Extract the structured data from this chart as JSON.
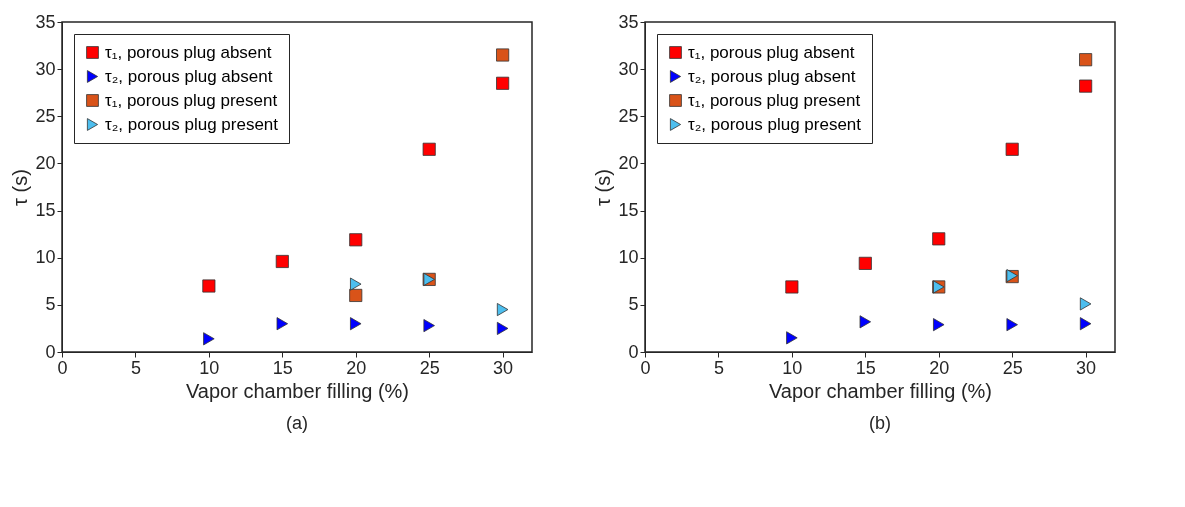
{
  "chart_data": [
    {
      "type": "scatter",
      "xlabel": "Vapor chamber filling (%)",
      "ylabel": "τ (s)",
      "annotations": [
        "(a)"
      ],
      "xlim": [
        0,
        32
      ],
      "ylim": [
        0,
        35
      ],
      "xticks": [
        0,
        5,
        10,
        15,
        20,
        25,
        30
      ],
      "yticks": [
        0,
        5,
        10,
        15,
        20,
        25,
        30,
        35
      ],
      "grid": false,
      "legend": "top left",
      "series": [
        {
          "name": "τ₁, porous plug absent",
          "color": "#ff0000",
          "marker": "square",
          "x": [
            10,
            15,
            20,
            25,
            30
          ],
          "values": [
            7.0,
            9.6,
            11.9,
            21.5,
            28.5
          ]
        },
        {
          "name": "τ₂, porous plug absent",
          "color": "#0000ff",
          "marker": "triangle",
          "x": [
            10,
            15,
            20,
            25,
            30
          ],
          "values": [
            1.4,
            3.0,
            3.0,
            2.8,
            2.5
          ]
        },
        {
          "name": "τ₁, porous plug present",
          "color": "#d95319",
          "marker": "square",
          "x": [
            20,
            25,
            30
          ],
          "values": [
            6.0,
            7.7,
            31.5
          ]
        },
        {
          "name": "τ₂, porous plug present",
          "color": "#4dbeee",
          "marker": "triangle",
          "x": [
            20,
            25,
            30
          ],
          "values": [
            7.2,
            7.7,
            4.5
          ]
        }
      ]
    },
    {
      "type": "scatter",
      "xlabel": "Vapor chamber filling (%)",
      "ylabel": "τ (s)",
      "annotations": [
        "(b)"
      ],
      "xlim": [
        0,
        32
      ],
      "ylim": [
        0,
        35
      ],
      "xticks": [
        0,
        5,
        10,
        15,
        20,
        25,
        30
      ],
      "yticks": [
        0,
        5,
        10,
        15,
        20,
        25,
        30,
        35
      ],
      "grid": false,
      "legend": "top left",
      "series": [
        {
          "name": "τ₁, porous plug absent",
          "color": "#ff0000",
          "marker": "square",
          "x": [
            10,
            15,
            20,
            25,
            30
          ],
          "values": [
            6.9,
            9.4,
            12.0,
            21.5,
            28.2
          ]
        },
        {
          "name": "τ₂, porous plug absent",
          "color": "#0000ff",
          "marker": "triangle",
          "x": [
            10,
            15,
            20,
            25,
            30
          ],
          "values": [
            1.5,
            3.2,
            2.9,
            2.9,
            3.0
          ]
        },
        {
          "name": "τ₁, porous plug present",
          "color": "#d95319",
          "marker": "square",
          "x": [
            20,
            25,
            30
          ],
          "values": [
            6.9,
            8.0,
            31.0
          ]
        },
        {
          "name": "τ₂, porous plug present",
          "color": "#4dbeee",
          "marker": "triangle",
          "x": [
            20,
            25,
            30
          ],
          "values": [
            6.9,
            8.1,
            5.1
          ]
        }
      ]
    }
  ]
}
